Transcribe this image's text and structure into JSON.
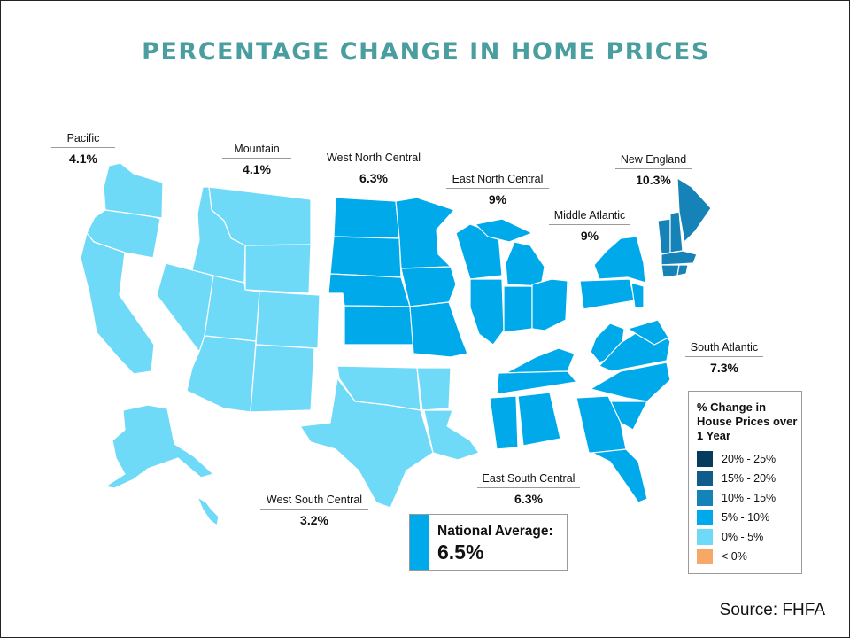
{
  "title": "PERCENTAGE CHANGE IN HOME PRICES",
  "source": "Source: FHFA",
  "colors": {
    "title": "#4a9ea0",
    "range_20_25": "#053c5e",
    "range_15_20": "#0e5d8a",
    "range_10_15": "#1583b8",
    "range_5_10": "#00aaea",
    "range_0_5": "#6fd9f8",
    "range_below_0": "#f7a866"
  },
  "regions": [
    {
      "id": "pacific",
      "name": "Pacific",
      "value": "4.1%",
      "range": "0% - 5%"
    },
    {
      "id": "mountain",
      "name": "Mountain",
      "value": "4.1%",
      "range": "0% - 5%"
    },
    {
      "id": "west-north-central",
      "name": "West North Central",
      "value": "6.3%",
      "range": "5% - 10%"
    },
    {
      "id": "east-north-central",
      "name": "East North Central",
      "value": "9%",
      "range": "5% - 10%"
    },
    {
      "id": "middle-atlantic",
      "name": "Middle Atlantic",
      "value": "9%",
      "range": "5% - 10%"
    },
    {
      "id": "new-england",
      "name": "New England",
      "value": "10.3%",
      "range": "10% - 15%"
    },
    {
      "id": "south-atlantic",
      "name": "South Atlantic",
      "value": "7.3%",
      "range": "5% - 10%"
    },
    {
      "id": "east-south-central",
      "name": "East South Central",
      "value": "6.3%",
      "range": "5% - 10%"
    },
    {
      "id": "west-south-central",
      "name": "West South Central",
      "value": "3.2%",
      "range": "0% - 5%"
    }
  ],
  "legend": {
    "title": "% Change in House Prices over 1 Year",
    "items": [
      {
        "label": "20% - 25%",
        "color": "#053c5e"
      },
      {
        "label": "15% - 20%",
        "color": "#0e5d8a"
      },
      {
        "label": "10% - 15%",
        "color": "#1583b8"
      },
      {
        "label": "5% - 10%",
        "color": "#00aaea"
      },
      {
        "label": "0% - 5%",
        "color": "#6fd9f8"
      },
      {
        "label": "< 0%",
        "color": "#f7a866"
      }
    ]
  },
  "national": {
    "label": "National Average:",
    "value": "6.5%"
  }
}
